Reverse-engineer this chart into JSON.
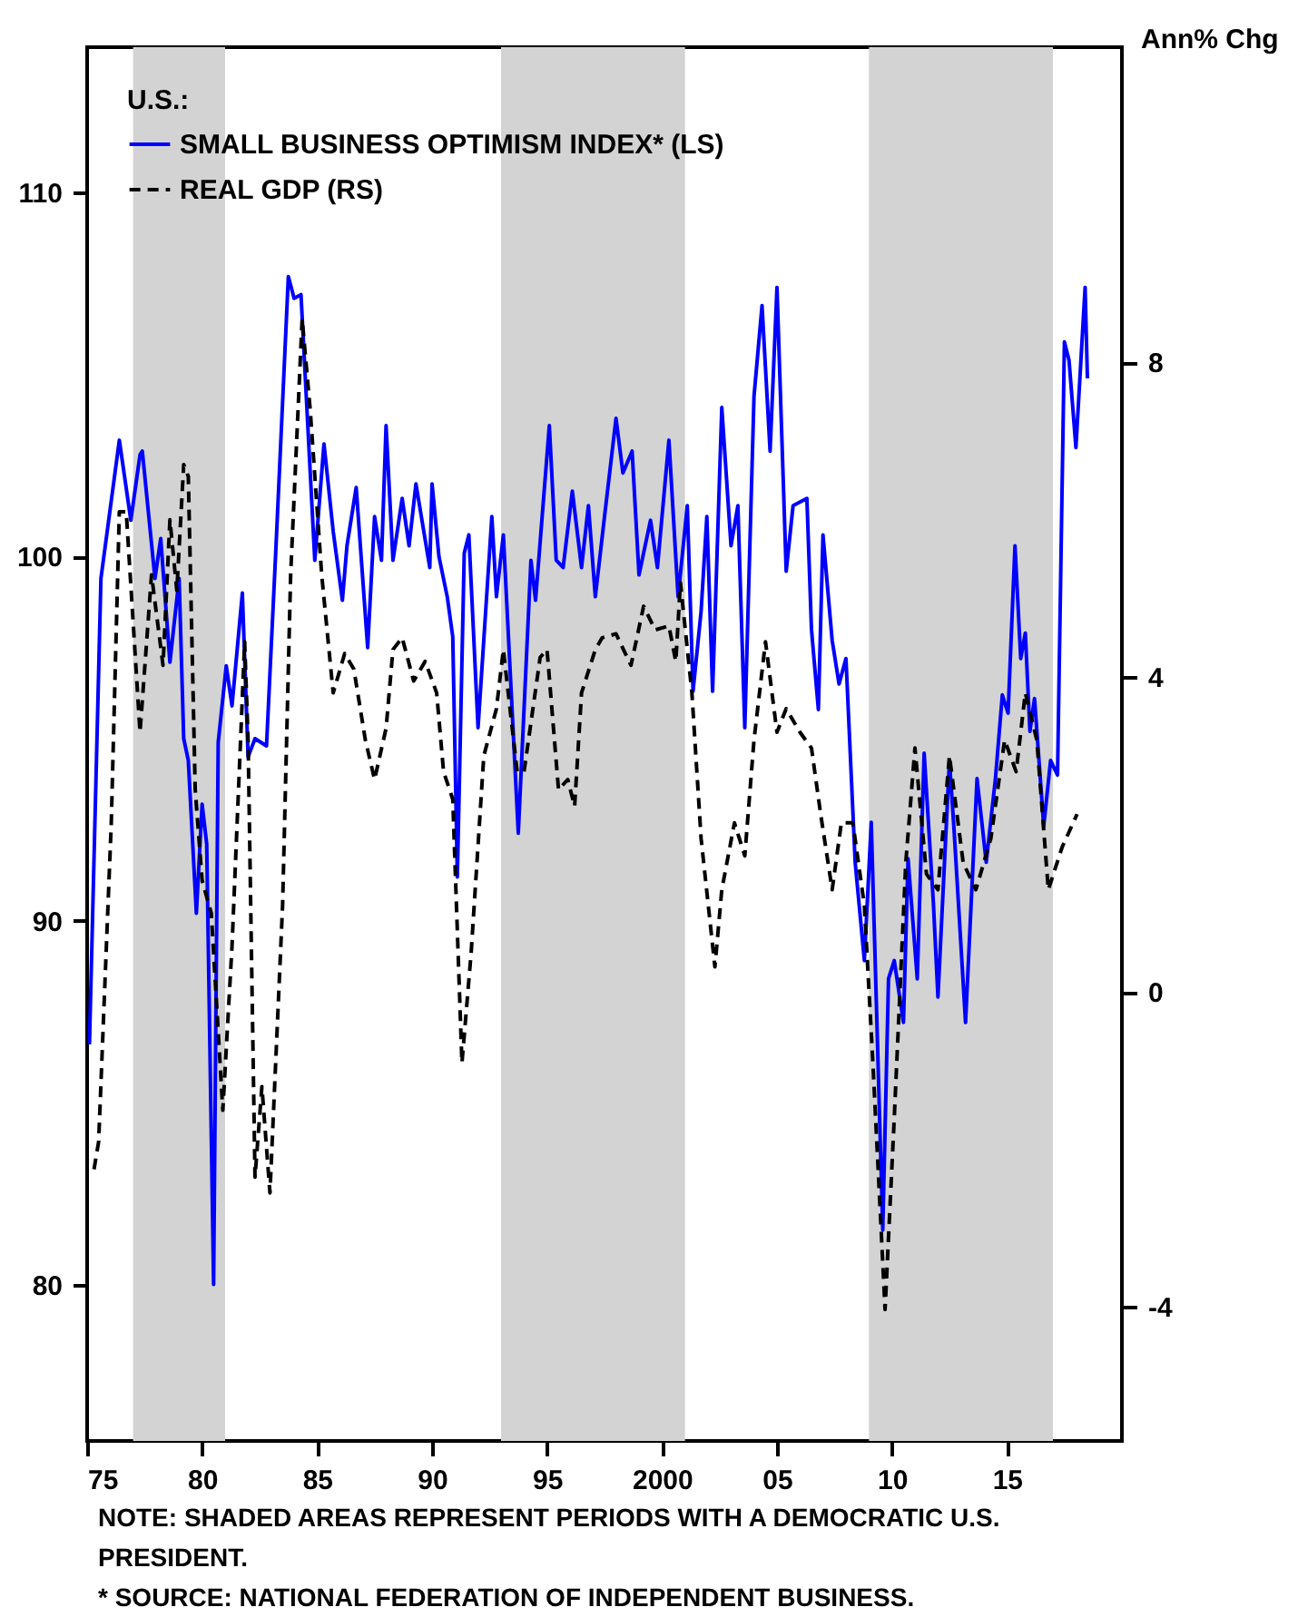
{
  "chart_data": {
    "type": "line",
    "legend_title": "U.S.:",
    "y2label": "Ann% Chg",
    "annotations": [
      "NOTE: SHADED AREAS REPRESENT PERIODS WITH A DEMOCRATIC U.S. PRESIDENT.",
      "* SOURCE: NATIONAL FEDERATION OF INDEPENDENT BUSINESS."
    ],
    "xlim": [
      1975,
      2020
    ],
    "xticks": [
      {
        "value": 1975,
        "label": "75"
      },
      {
        "value": 1980,
        "label": "80"
      },
      {
        "value": 1985,
        "label": "85"
      },
      {
        "value": 1990,
        "label": "90"
      },
      {
        "value": 1995,
        "label": "95"
      },
      {
        "value": 2000,
        "label": "2000"
      },
      {
        "value": 2005,
        "label": "05"
      },
      {
        "value": 2010,
        "label": "10"
      },
      {
        "value": 2015,
        "label": "15"
      }
    ],
    "ylim": [
      75.7,
      114
    ],
    "yticks": [
      80,
      90,
      100,
      110
    ],
    "y2lim": [
      -5.7,
      12
    ],
    "y2ticks": [
      -4,
      0,
      4,
      8
    ],
    "grid": false,
    "legend": "top left",
    "marker": "none",
    "bands": [
      {
        "axis": "x",
        "from": 1977,
        "to": 1981,
        "color": "#d3d3d3"
      },
      {
        "axis": "x",
        "from": 1993,
        "to": 2001,
        "color": "#d3d3d3"
      },
      {
        "axis": "x",
        "from": 2009,
        "to": 2017,
        "color": "#d3d3d3"
      }
    ],
    "series": [
      {
        "name": "SMALL BUSINESS OPTIMISM INDEX* (LS)",
        "color": "#0000ff",
        "line_style": "solid",
        "axis": "y",
        "x": [
          1975.1,
          1975.6,
          1976.4,
          1976.9,
          1977.3,
          1977.4,
          1977.95,
          1978.2,
          1978.6,
          1979.0,
          1979.2,
          1979.4,
          1979.75,
          1980.0,
          1980.2,
          1980.5,
          1980.7,
          1981.05,
          1981.3,
          1981.75,
          1982.0,
          1982.3,
          1982.8,
          1983.2,
          1983.75,
          1984.0,
          1984.3,
          1984.9,
          1985.3,
          1985.7,
          1986.1,
          1986.3,
          1986.7,
          1987.2,
          1987.5,
          1987.8,
          1988.0,
          1988.3,
          1988.7,
          1989.0,
          1989.3,
          1989.9,
          1990.0,
          1990.3,
          1990.66,
          1990.9,
          1991.1,
          1991.4,
          1991.6,
          1992.0,
          1992.6,
          1992.8,
          1993.1,
          1993.75,
          1994.3,
          1994.5,
          1995.1,
          1995.4,
          1995.7,
          1996.1,
          1996.5,
          1996.8,
          1997.1,
          1997.5,
          1998.0,
          1998.3,
          1998.7,
          1999.0,
          1999.5,
          1999.8,
          2000.3,
          2000.7,
          2001.1,
          2001.35,
          2001.7,
          2001.95,
          2002.2,
          2002.6,
          2003.0,
          2003.3,
          2003.6,
          2004.0,
          2004.35,
          2004.7,
          2005.0,
          2005.4,
          2005.7,
          2006.3,
          2006.5,
          2006.8,
          2007.0,
          2007.4,
          2007.7,
          2008.0,
          2008.4,
          2008.8,
          2009.1,
          2009.6,
          2009.85,
          2010.1,
          2010.5,
          2010.7,
          2011.1,
          2011.4,
          2011.8,
          2012.0,
          2012.5,
          2012.7,
          2013.2,
          2013.7,
          2014.1,
          2014.5,
          2014.8,
          2015.05,
          2015.35,
          2015.6,
          2015.8,
          2016.0,
          2016.2,
          2016.6,
          2016.9,
          2017.2,
          2017.5,
          2017.7,
          2018.0,
          2018.2,
          2018.4,
          2018.5
        ],
        "values": [
          86.6,
          99.4,
          103.2,
          101.0,
          102.8,
          102.9,
          99.4,
          100.5,
          97.1,
          99.4,
          95.0,
          94.4,
          90.2,
          93.2,
          92.1,
          80.0,
          94.9,
          97.0,
          95.9,
          99.0,
          94.5,
          95.0,
          94.8,
          100.1,
          107.7,
          107.1,
          107.2,
          99.9,
          103.1,
          100.7,
          98.8,
          100.3,
          101.9,
          97.5,
          101.1,
          99.9,
          103.6,
          99.9,
          101.6,
          100.3,
          102.0,
          99.7,
          102.0,
          100.0,
          98.9,
          97.8,
          91.2,
          100.1,
          100.6,
          95.3,
          101.1,
          98.9,
          100.6,
          92.4,
          99.9,
          98.8,
          103.6,
          99.9,
          99.7,
          101.8,
          99.7,
          101.4,
          98.9,
          101.1,
          103.8,
          102.3,
          102.9,
          99.5,
          101.0,
          99.7,
          103.2,
          98.9,
          101.4,
          96.3,
          98.5,
          101.1,
          96.3,
          104.1,
          100.3,
          101.4,
          95.3,
          104.4,
          106.9,
          102.9,
          107.4,
          99.6,
          101.4,
          101.6,
          98.0,
          95.8,
          100.6,
          97.7,
          96.5,
          97.2,
          91.6,
          88.9,
          92.7,
          81.5,
          88.4,
          88.9,
          87.2,
          91.7,
          88.4,
          94.6,
          90.5,
          87.9,
          94.4,
          92.5,
          87.2,
          93.9,
          91.6,
          93.9,
          96.2,
          95.7,
          100.3,
          97.2,
          97.9,
          95.2,
          96.1,
          92.6,
          94.4,
          94.0,
          105.9,
          105.4,
          103.0,
          105.2,
          107.4,
          104.9
        ]
      },
      {
        "name": "REAL GDP (RS)",
        "color": "#000000",
        "line_style": "dashed",
        "axis": "y2",
        "x": [
          1975.3,
          1975.5,
          1976.05,
          1976.4,
          1976.7,
          1977.3,
          1977.8,
          1978.3,
          1978.6,
          1978.9,
          1979.2,
          1979.4,
          1979.7,
          1980.0,
          1980.4,
          1980.9,
          1981.3,
          1981.85,
          1982.0,
          1982.3,
          1982.6,
          1982.95,
          1983.5,
          1983.85,
          1984.35,
          1984.7,
          1985.2,
          1985.7,
          1986.2,
          1986.6,
          1987.1,
          1987.5,
          1988.0,
          1988.3,
          1988.7,
          1989.2,
          1989.7,
          1990.2,
          1990.5,
          1990.9,
          1991.3,
          1991.7,
          1992.25,
          1992.8,
          1993.1,
          1993.7,
          1994.0,
          1994.7,
          1995.0,
          1995.5,
          1995.9,
          1996.2,
          1996.5,
          1997.1,
          1997.4,
          1998.0,
          1998.65,
          1999.2,
          1999.7,
          2000.3,
          2000.6,
          2000.8,
          2001.3,
          2001.7,
          2002.3,
          2002.6,
          2003.15,
          2003.6,
          2004.0,
          2004.5,
          2005.0,
          2005.4,
          2006.0,
          2006.5,
          2006.9,
          2007.4,
          2007.8,
          2008.3,
          2008.8,
          2009.15,
          2009.7,
          2010.1,
          2010.6,
          2011.0,
          2011.5,
          2012.0,
          2012.5,
          2013.1,
          2013.65,
          2014.3,
          2014.9,
          2015.4,
          2015.8,
          2016.3,
          2016.8,
          2017.4,
          2018.05
        ],
        "values": [
          -2.25,
          -1.9,
          2.15,
          6.1,
          6.1,
          3.3,
          5.3,
          4.15,
          6.0,
          5.1,
          6.7,
          6.55,
          2.57,
          1.42,
          1.0,
          -1.5,
          0.58,
          4.45,
          3.2,
          -2.35,
          -1.2,
          -2.55,
          1.1,
          5.3,
          8.55,
          7.4,
          5.3,
          3.8,
          4.3,
          4.1,
          3.2,
          2.7,
          3.35,
          4.35,
          4.5,
          3.95,
          4.2,
          3.8,
          2.8,
          2.45,
          -0.9,
          0.5,
          3.0,
          3.6,
          4.35,
          2.8,
          2.8,
          4.25,
          4.35,
          2.57,
          2.7,
          2.36,
          3.8,
          4.35,
          4.5,
          4.55,
          4.15,
          4.9,
          4.6,
          4.65,
          4.2,
          5.2,
          3.8,
          1.95,
          0.32,
          1.3,
          2.15,
          1.73,
          3.2,
          4.45,
          3.3,
          3.6,
          3.3,
          3.1,
          2.26,
          1.3,
          2.15,
          2.15,
          1.1,
          -0.78,
          -4.03,
          -1.6,
          1.64,
          3.1,
          1.5,
          1.3,
          3.0,
          1.64,
          1.3,
          1.95,
          3.2,
          2.8,
          3.8,
          3.2,
          1.3,
          1.84,
          2.26
        ]
      }
    ]
  }
}
